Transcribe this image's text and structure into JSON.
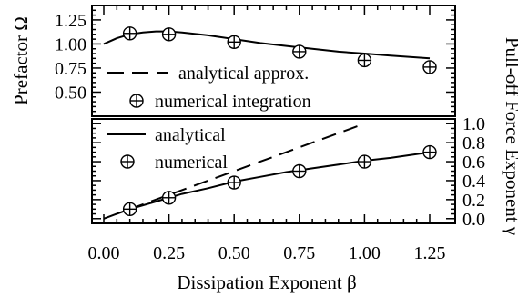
{
  "chart_data": [
    {
      "panel": "top",
      "type": "line",
      "ylabel": "Prefactor  Ω",
      "xlim": [
        0.0,
        1.25
      ],
      "ylim": [
        0.25,
        1.4
      ],
      "y_ticks": [
        "1.25",
        "1.00",
        "0.75",
        "0.50"
      ],
      "y_tick_values": [
        1.25,
        1.0,
        0.75,
        0.5
      ],
      "series": [
        {
          "name": "analytical approx.",
          "style": "solid",
          "x": [
            0.0,
            0.05,
            0.1,
            0.15,
            0.2,
            0.25,
            0.3,
            0.4,
            0.5,
            0.6,
            0.7,
            0.8,
            0.9,
            1.0,
            1.1,
            1.2,
            1.25
          ],
          "y": [
            1.0,
            1.06,
            1.1,
            1.12,
            1.13,
            1.13,
            1.12,
            1.09,
            1.05,
            1.01,
            0.98,
            0.95,
            0.92,
            0.9,
            0.88,
            0.86,
            0.85
          ]
        },
        {
          "name": "numerical integration",
          "style": "markers",
          "x": [
            0.1,
            0.25,
            0.5,
            0.75,
            1.0,
            1.25
          ],
          "y": [
            1.11,
            1.1,
            1.02,
            0.92,
            0.83,
            0.76
          ]
        }
      ]
    },
    {
      "panel": "bottom",
      "type": "line",
      "xlabel": "Dissipation Exponent  β",
      "ylabel": "Pull-off Force Exponent  γ",
      "xlim": [
        0.0,
        1.25
      ],
      "ylim": [
        -0.05,
        1.05
      ],
      "x_ticks": [
        "0.00",
        "0.25",
        "0.50",
        "0.75",
        "1.00",
        "1.25"
      ],
      "x_tick_values": [
        0.0,
        0.25,
        0.5,
        0.75,
        1.0,
        1.25
      ],
      "y_ticks": [
        "1.0",
        "0.8",
        "0.6",
        "0.4",
        "0.2",
        "0.0"
      ],
      "y_tick_values": [
        1.0,
        0.8,
        0.6,
        0.4,
        0.2,
        0.0
      ],
      "series": [
        {
          "name": "analytical",
          "style": "solid",
          "x": [
            0.0,
            0.05,
            0.1,
            0.2,
            0.3,
            0.4,
            0.5,
            0.6,
            0.7,
            0.8,
            0.9,
            1.0,
            1.1,
            1.2,
            1.25
          ],
          "y": [
            0.0,
            0.05,
            0.1,
            0.18,
            0.26,
            0.32,
            0.39,
            0.44,
            0.49,
            0.53,
            0.57,
            0.61,
            0.64,
            0.68,
            0.7
          ]
        },
        {
          "name": "",
          "style": "dashed",
          "x": [
            0.1,
            1.0
          ],
          "y": [
            0.1,
            1.0
          ]
        },
        {
          "name": "numerical",
          "style": "markers",
          "x": [
            0.1,
            0.25,
            0.5,
            0.75,
            1.0,
            1.25
          ],
          "y": [
            0.1,
            0.22,
            0.38,
            0.5,
            0.6,
            0.7
          ]
        }
      ]
    }
  ]
}
